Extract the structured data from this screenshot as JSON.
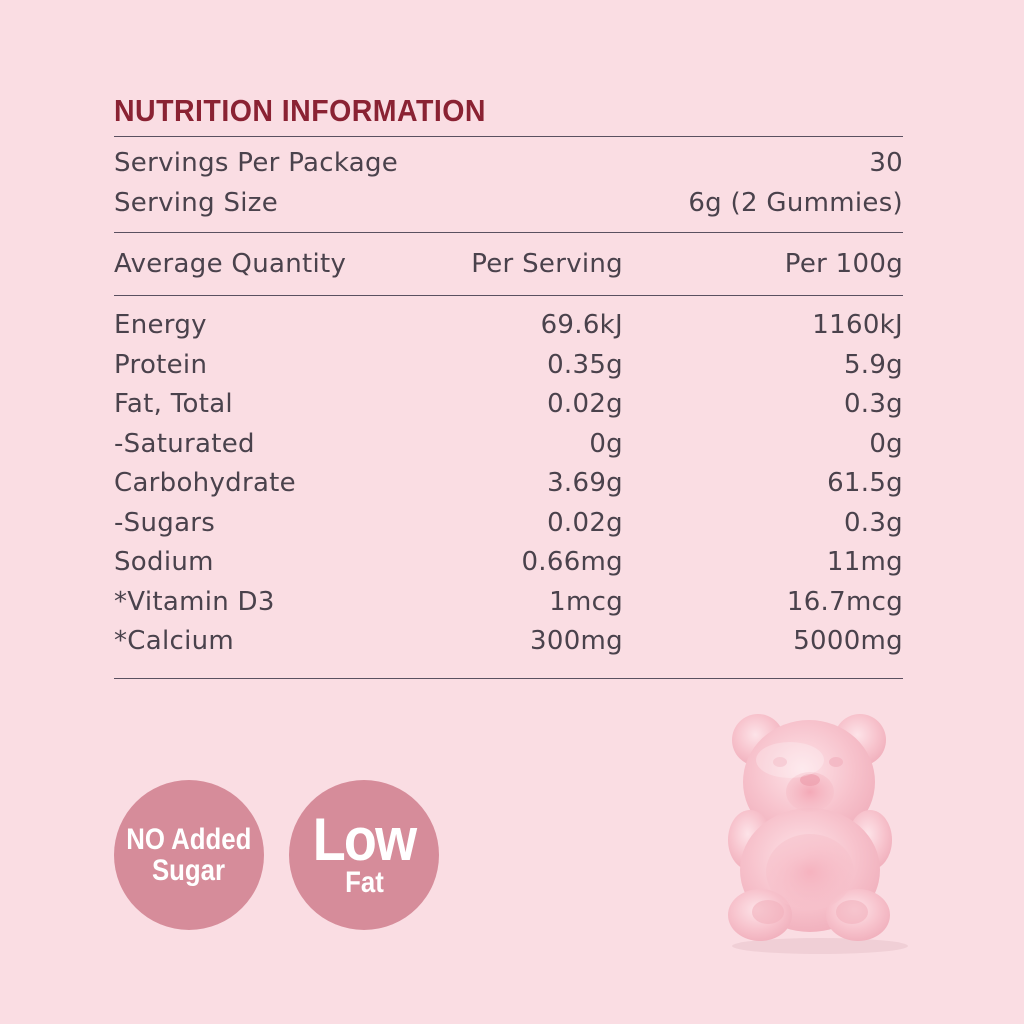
{
  "title": "NUTRITION INFORMATION",
  "servings": {
    "per_package_label": "Servings Per Package",
    "per_package_value": "30",
    "size_label": "Serving Size",
    "size_value": "6g (2 Gummies)"
  },
  "table": {
    "headers": [
      "Average Quantity",
      "Per Serving",
      "Per 100g"
    ],
    "rows": [
      [
        "Energy",
        "69.6kJ",
        "1160kJ"
      ],
      [
        "Protein",
        "0.35g",
        "5.9g"
      ],
      [
        "Fat, Total",
        "0.02g",
        "0.3g"
      ],
      [
        "-Saturated",
        "0g",
        "0g"
      ],
      [
        "Carbohydrate",
        "3.69g",
        "61.5g"
      ],
      [
        "-Sugars",
        "0.02g",
        "0.3g"
      ],
      [
        "Sodium",
        "0.66mg",
        "11mg"
      ],
      [
        "*Vitamin D3",
        "1mcg",
        "16.7mcg"
      ],
      [
        "*Calcium",
        "300mg",
        "5000mg"
      ]
    ]
  },
  "badges": {
    "no_added_sugar": {
      "line1": "NO Added",
      "line2": "Sugar"
    },
    "low_fat": {
      "line1": "Low",
      "line2": "Fat"
    }
  },
  "colors": {
    "background": "#fadde3",
    "title": "#8a2233",
    "text": "#4a424c",
    "badge": "#d68c9a",
    "rule": "#5a5060"
  },
  "image": {
    "icon": "gummy-bear-icon"
  }
}
